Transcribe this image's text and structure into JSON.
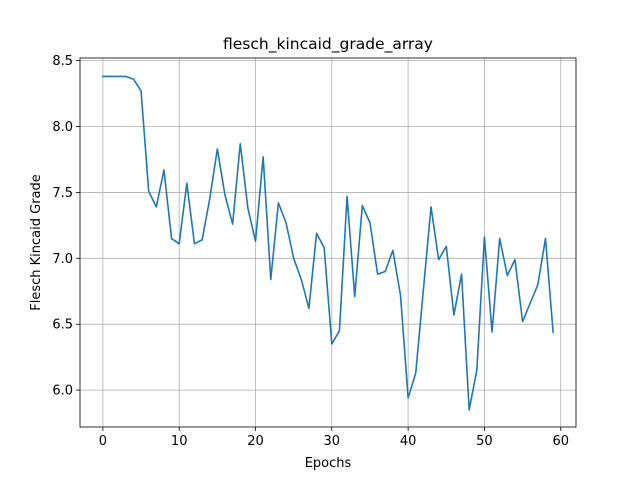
{
  "chart_data": {
    "type": "line",
    "title": "flesch_kincaid_grade_array",
    "xlabel": "Epochs",
    "ylabel": "Flesch Kincaid Grade",
    "xlim": [
      -3,
      62
    ],
    "ylim": [
      5.72,
      8.52
    ],
    "xticks": [
      0,
      10,
      20,
      30,
      40,
      50,
      60
    ],
    "yticks": [
      6.0,
      6.5,
      7.0,
      7.5,
      8.0,
      8.5
    ],
    "xtick_labels": [
      "0",
      "10",
      "20",
      "30",
      "40",
      "50",
      "60"
    ],
    "ytick_labels": [
      "6.0",
      "6.5",
      "7.0",
      "7.5",
      "8.0",
      "8.5"
    ],
    "grid": true,
    "line_color": "#1f77b4",
    "series": [
      {
        "x": [
          0,
          1,
          2,
          3,
          4,
          5,
          6,
          7,
          8,
          9,
          10,
          11,
          12,
          13,
          14,
          15,
          16,
          17,
          18,
          19,
          20,
          21,
          22,
          23,
          24,
          25,
          26,
          27,
          28,
          29,
          30,
          31,
          32,
          33,
          34,
          35,
          36,
          37,
          38,
          39,
          40,
          41,
          42,
          43,
          44,
          45,
          46,
          47,
          48,
          49,
          50,
          51,
          52,
          53,
          54,
          55,
          56,
          57,
          58,
          59
        ],
        "y": [
          8.38,
          8.38,
          8.38,
          8.38,
          8.36,
          8.27,
          7.51,
          7.39,
          7.67,
          7.15,
          7.11,
          7.57,
          7.11,
          7.14,
          7.45,
          7.83,
          7.48,
          7.26,
          7.87,
          7.38,
          7.13,
          7.77,
          6.84,
          7.42,
          7.27,
          7.0,
          6.84,
          6.62,
          7.19,
          7.08,
          6.35,
          6.45,
          7.47,
          6.71,
          7.4,
          7.27,
          6.88,
          6.9,
          7.06,
          6.72,
          5.94,
          6.13,
          6.76,
          7.39,
          6.99,
          7.09,
          6.57,
          6.88,
          5.85,
          6.15,
          7.16,
          6.44,
          7.15,
          6.87,
          6.99,
          6.52,
          6.66,
          6.8,
          7.15,
          6.44
        ]
      }
    ]
  }
}
